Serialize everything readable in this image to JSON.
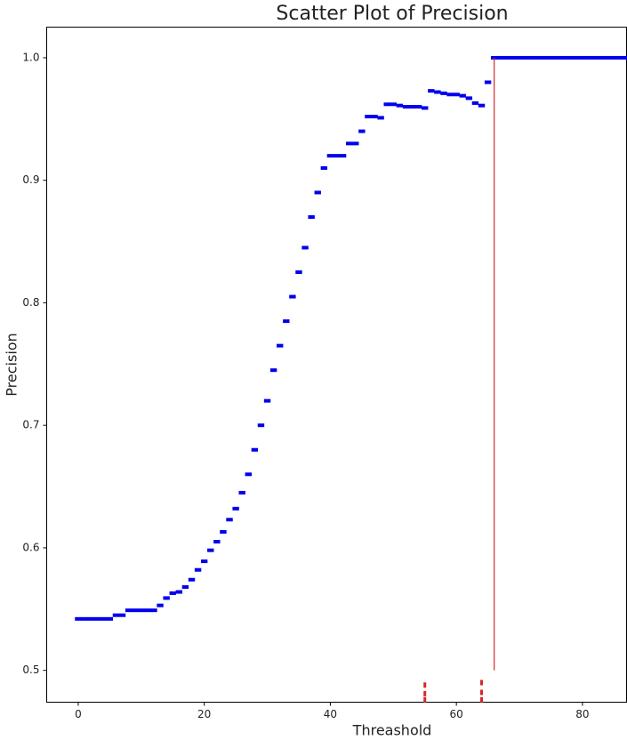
{
  "chart_data": {
    "type": "scatter",
    "title": "Scatter Plot of Precision",
    "xlabel": "Threashold",
    "ylabel": "Precision",
    "xlim": [
      -5,
      87
    ],
    "ylim": [
      0.474,
      1.025
    ],
    "xticks": [
      0,
      20,
      40,
      60,
      80
    ],
    "yticks": [
      0.5,
      0.6,
      0.7,
      0.8,
      0.9,
      {
        "value": 1,
        "label": "1.0"
      }
    ],
    "grid": false,
    "series": [
      {
        "color": "#0000ee",
        "marker": "dash",
        "x": [
          0,
          1,
          2,
          3,
          4,
          5,
          6,
          7,
          8,
          9,
          10,
          11,
          12,
          13,
          14,
          15,
          16,
          17,
          18,
          19,
          20,
          21,
          22,
          23,
          24,
          25,
          26,
          27,
          28,
          29,
          30,
          31,
          32,
          33,
          34,
          35,
          36,
          37,
          38,
          39,
          40,
          41,
          42,
          43,
          44,
          45,
          46,
          47,
          48,
          49,
          50,
          51,
          52,
          53,
          54,
          55,
          56,
          57,
          58,
          59,
          60,
          61,
          62,
          63,
          64,
          65,
          66,
          67,
          68,
          69,
          70,
          71,
          72,
          73,
          74,
          75,
          76,
          77,
          78,
          79,
          80,
          81,
          82,
          83,
          84,
          85,
          86,
          87
        ],
        "y": [
          0.542,
          0.542,
          0.542,
          0.542,
          0.542,
          0.542,
          0.545,
          0.545,
          0.549,
          0.549,
          0.549,
          0.549,
          0.549,
          0.553,
          0.559,
          0.563,
          0.564,
          0.568,
          0.574,
          0.582,
          0.589,
          0.598,
          0.605,
          0.613,
          0.623,
          0.632,
          0.645,
          0.66,
          0.68,
          0.7,
          0.72,
          0.745,
          0.765,
          0.785,
          0.805,
          0.825,
          0.845,
          0.87,
          0.89,
          0.91,
          0.92,
          0.92,
          0.92,
          0.93,
          0.93,
          0.94,
          0.952,
          0.952,
          0.951,
          0.962,
          0.962,
          0.961,
          0.96,
          0.96,
          0.96,
          0.959,
          0.973,
          0.972,
          0.971,
          0.97,
          0.97,
          0.969,
          0.967,
          0.963,
          0.961,
          0.98,
          1,
          1,
          1,
          1,
          1,
          1,
          1,
          1,
          1,
          1,
          1,
          1,
          1,
          1,
          1,
          1,
          1,
          1,
          1,
          1,
          1,
          1
        ]
      },
      {
        "color": "#d62728",
        "marker": "tick",
        "x": [
          55,
          55,
          55,
          64,
          64,
          64
        ],
        "y": [
          0.488,
          0.481,
          0.476,
          0.49,
          0.482,
          0.476
        ]
      }
    ],
    "vline": {
      "x": 66,
      "ymin": 0.5,
      "ymax": 1,
      "color": "#d62728"
    }
  }
}
